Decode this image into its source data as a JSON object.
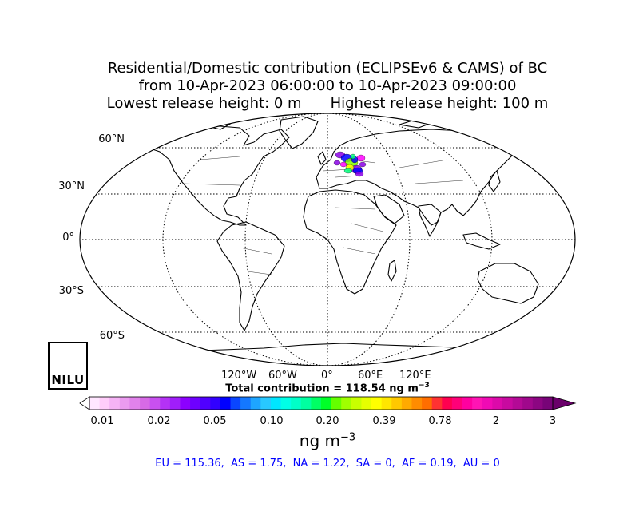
{
  "title": {
    "line1": "Residential/Domestic contribution (ECLIPSEv6 & CAMS) of BC",
    "line2": "from 10-Apr-2023 06:00:00 to 10-Apr-2023 09:00:00",
    "line3a": "Lowest release height: 0 m",
    "line3b": "Highest release height: 100 m"
  },
  "map": {
    "projection": "Robinson",
    "lat_labels": [
      "60°N",
      "30°N",
      "0°",
      "30°S",
      "60°S"
    ],
    "lon_labels": [
      "120°W",
      "60°W",
      "0°",
      "60°E",
      "120°E"
    ],
    "plume_colors": [
      "#8a00e6",
      "#0000ff",
      "#7fff00",
      "#ffff00",
      "#ff00ff",
      "#00ff7f"
    ]
  },
  "total": {
    "prefix": "Total contribution = 118.54 ng m",
    "exponent": "−3"
  },
  "colorbar": {
    "ticks": [
      "0.01",
      "0.02",
      "0.05",
      "0.10",
      "0.20",
      "0.39",
      "0.78",
      "2",
      "3"
    ],
    "unit": "ng m",
    "unit_exponent": "−3",
    "colors": [
      "#ffe6ff",
      "#ffcdfa",
      "#f5b3f5",
      "#eb9bf0",
      "#e182eb",
      "#d76ae6",
      "#c850f0",
      "#b432f5",
      "#a01efa",
      "#8c00ff",
      "#6e00ff",
      "#5000ff",
      "#3200ff",
      "#0000ff",
      "#0a46ff",
      "#1478ff",
      "#1ea5ff",
      "#28c8ff",
      "#00e6ff",
      "#00ffe6",
      "#00ffc8",
      "#00ffa0",
      "#00ff64",
      "#00ff28",
      "#64ff00",
      "#a0ff00",
      "#c8ff00",
      "#e6ff00",
      "#ffff00",
      "#ffe600",
      "#ffc800",
      "#ffaa00",
      "#ff8c00",
      "#ff6e00",
      "#ff3232",
      "#ff0050",
      "#ff0078",
      "#ff00a0",
      "#ff14b4",
      "#f00ab4",
      "#dc0aaa",
      "#c80aa0",
      "#b40a96",
      "#a0088c",
      "#8c0682",
      "#780478"
    ],
    "under_color": "#ffffff",
    "over_color": "#6a006a"
  },
  "regions_text": "EU = 115.36,  AS = 1.75,  NA = 1.22,  SA = 0,  AF = 0.19,  AU = 0",
  "logo": {
    "text": "NILU",
    "colors": [
      "#1ea8e6",
      "#000000"
    ]
  }
}
